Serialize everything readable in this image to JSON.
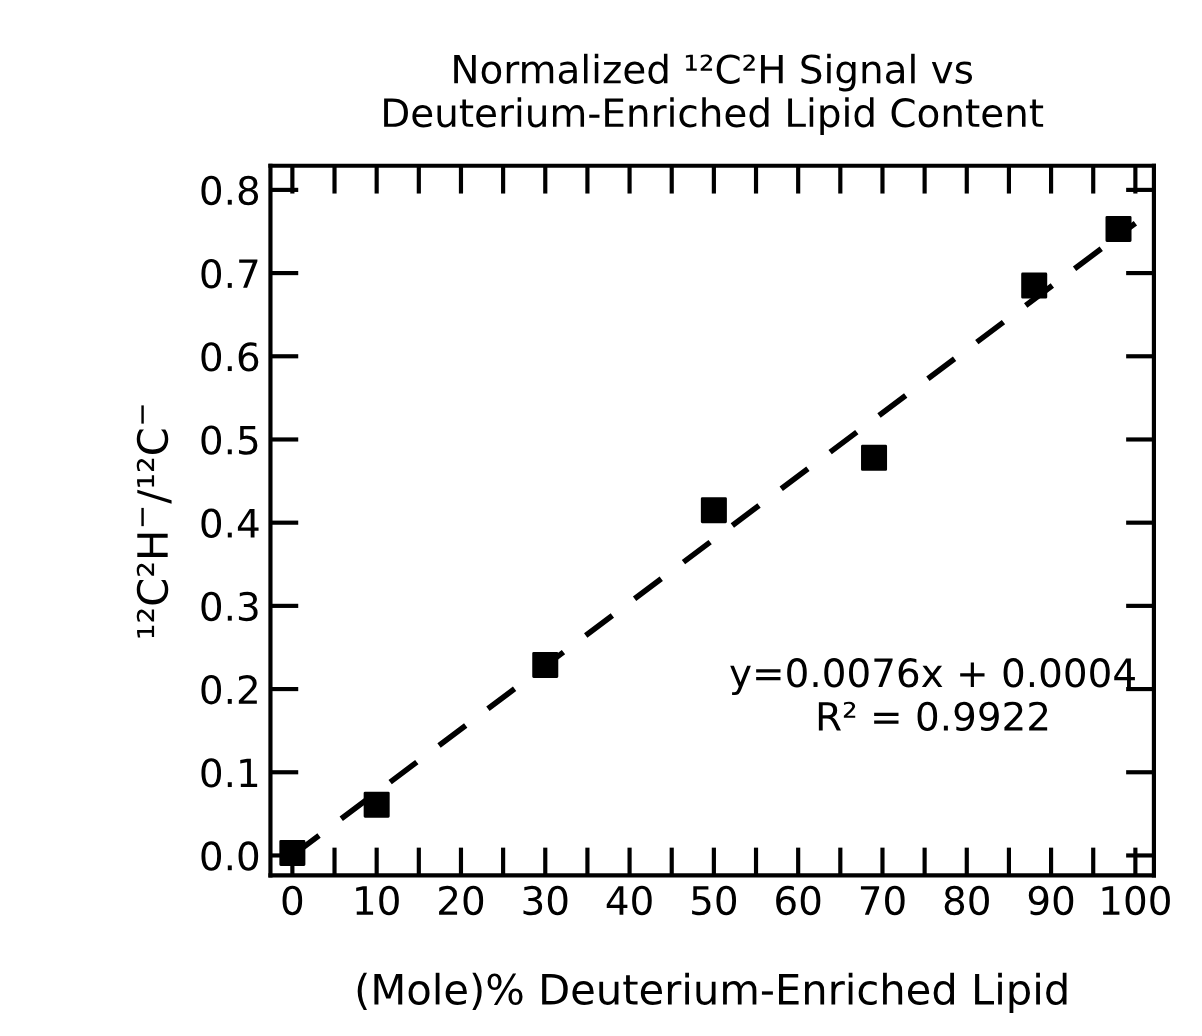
{
  "chart_data": {
    "type": "scatter",
    "title": "Normalized ¹²C²H Signal vs\nDeuterium-Enriched Lipid Content",
    "xlabel": "(Mole)% Deuterium-Enriched Lipid",
    "ylabel": "¹²C²H$^{−}$/¹²C$^{−}$",
    "series": [
      {
        "color": "#000000",
        "marker": "square",
        "x": [
          0,
          10,
          30,
          50,
          69,
          88,
          98
        ],
        "values": [
          0.003,
          0.061,
          0.229,
          0.415,
          0.478,
          0.685,
          0.753
        ]
      },
      {
        "type": "line",
        "color": "#000000",
        "marker": "none",
        "line_style": "dashed",
        "x": [
          0,
          100
        ],
        "values": [
          0.0,
          0.76
        ]
      }
    ],
    "annotations": [
      "y=0.0076x + 0.0004\nR² = 0.9922"
    ],
    "xlim": [
      -2.6,
      102.2
    ],
    "ylim": [
      -0.024,
      0.829
    ],
    "xticks": [
      0,
      {
        "value": 5,
        "label": null
      },
      10,
      {
        "value": 15,
        "label": null
      },
      20,
      {
        "value": 25,
        "label": null
      },
      30,
      {
        "value": 35,
        "label": null
      },
      40,
      {
        "value": 45,
        "label": null
      },
      50,
      {
        "value": 55,
        "label": null
      },
      60,
      {
        "value": 65,
        "label": null
      },
      70,
      {
        "value": 75,
        "label": null
      },
      80,
      {
        "value": 85,
        "label": null
      },
      90,
      {
        "value": 95,
        "label": null
      },
      100
    ],
    "yticks": [
      {
        "value": 0,
        "label": "0.0"
      },
      0.1,
      0.2,
      0.3,
      0.4,
      0.5,
      0.6,
      0.7,
      0.8
    ],
    "grid": false,
    "legend": false
  }
}
